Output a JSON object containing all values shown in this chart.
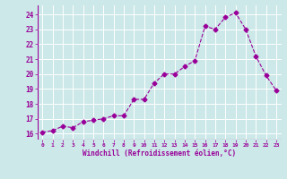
{
  "x": [
    0,
    1,
    2,
    3,
    4,
    5,
    6,
    7,
    8,
    9,
    10,
    11,
    12,
    13,
    14,
    15,
    16,
    17,
    18,
    19,
    20,
    21,
    22,
    23
  ],
  "y": [
    16.1,
    16.2,
    16.5,
    16.4,
    16.8,
    16.9,
    17.0,
    17.2,
    17.2,
    18.3,
    18.3,
    19.4,
    20.0,
    20.0,
    20.5,
    20.9,
    23.2,
    23.0,
    23.8,
    24.1,
    23.0,
    21.2,
    19.9,
    18.9
  ],
  "line_color": "#990099",
  "marker": "D",
  "bg_color": "#cce8e8",
  "grid_color": "#ffffff",
  "xlabel": "Windchill (Refroidissement éolien,°C)",
  "xlabel_color": "#990099",
  "ylabel_ticks": [
    16,
    17,
    18,
    19,
    20,
    21,
    22,
    23,
    24
  ],
  "xtick_labels": [
    "0",
    "1",
    "2",
    "3",
    "4",
    "5",
    "6",
    "7",
    "8",
    "9",
    "10",
    "11",
    "12",
    "13",
    "14",
    "15",
    "16",
    "17",
    "18",
    "19",
    "20",
    "21",
    "22",
    "23"
  ],
  "ylim": [
    15.6,
    24.6
  ],
  "xlim": [
    -0.5,
    23.5
  ],
  "tick_color": "#990099",
  "markersize": 2.5,
  "linewidth": 0.8
}
